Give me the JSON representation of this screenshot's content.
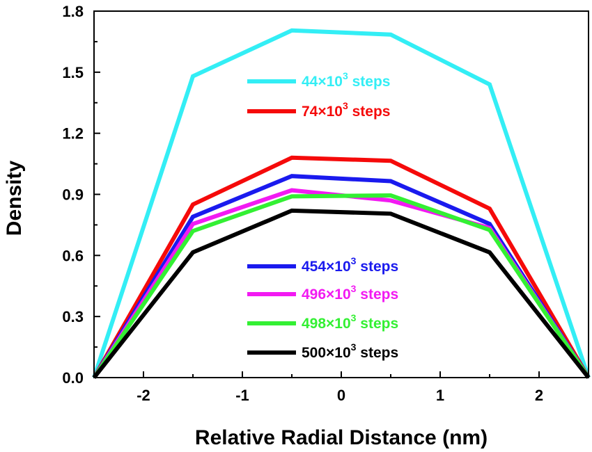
{
  "chart_data": {
    "type": "line",
    "xlabel": "Relative Radial Distance (nm)",
    "ylabel": "Density",
    "xlim": [
      -2.5,
      2.5
    ],
    "ylim": [
      0,
      1.8
    ],
    "xticks": [
      "-2",
      "-1",
      "0",
      "1",
      "2"
    ],
    "xtick_values": [
      -2,
      -1,
      0,
      1,
      2
    ],
    "yticks": [
      "0.0",
      "0.3",
      "0.6",
      "0.9",
      "1.2",
      "1.5",
      "1.8"
    ],
    "ytick_values": [
      0,
      0.3,
      0.6,
      0.9,
      1.2,
      1.5,
      1.8
    ],
    "x": [
      -2.5,
      -1.5,
      -0.5,
      0.5,
      1.5,
      2.5
    ],
    "series": [
      {
        "name": "44×10³ steps",
        "base": "44×10",
        "sup": "3",
        "suffix": " steps",
        "color": "#33eef5",
        "values": [
          0.0,
          1.48,
          1.705,
          1.685,
          1.44,
          0.0
        ]
      },
      {
        "name": "74×10³ steps",
        "base": "74×10",
        "sup": "3",
        "suffix": " steps",
        "color": "#f50a0a",
        "values": [
          0.0,
          0.85,
          1.08,
          1.065,
          0.83,
          0.0
        ]
      },
      {
        "name": "454×10³ steps",
        "base": "454×10",
        "sup": "3",
        "suffix": " steps",
        "color": "#1a1aee",
        "values": [
          0.0,
          0.79,
          0.99,
          0.965,
          0.755,
          0.0
        ]
      },
      {
        "name": "496×10³ steps",
        "base": "496×10",
        "sup": "3",
        "suffix": " steps",
        "color": "#f21af2",
        "values": [
          0.0,
          0.755,
          0.92,
          0.87,
          0.735,
          0.0
        ]
      },
      {
        "name": "498×10³ steps",
        "base": "498×10",
        "sup": "3",
        "suffix": " steps",
        "color": "#33f033",
        "values": [
          0.0,
          0.72,
          0.89,
          0.895,
          0.725,
          0.0
        ]
      },
      {
        "name": "500×10³ steps",
        "base": "500×10",
        "sup": "3",
        "suffix": " steps",
        "color": "#000000",
        "values": [
          0.0,
          0.615,
          0.82,
          0.805,
          0.615,
          0.0
        ]
      }
    ],
    "legend": "inside, two groups (top and bottom center)",
    "grid": false
  }
}
